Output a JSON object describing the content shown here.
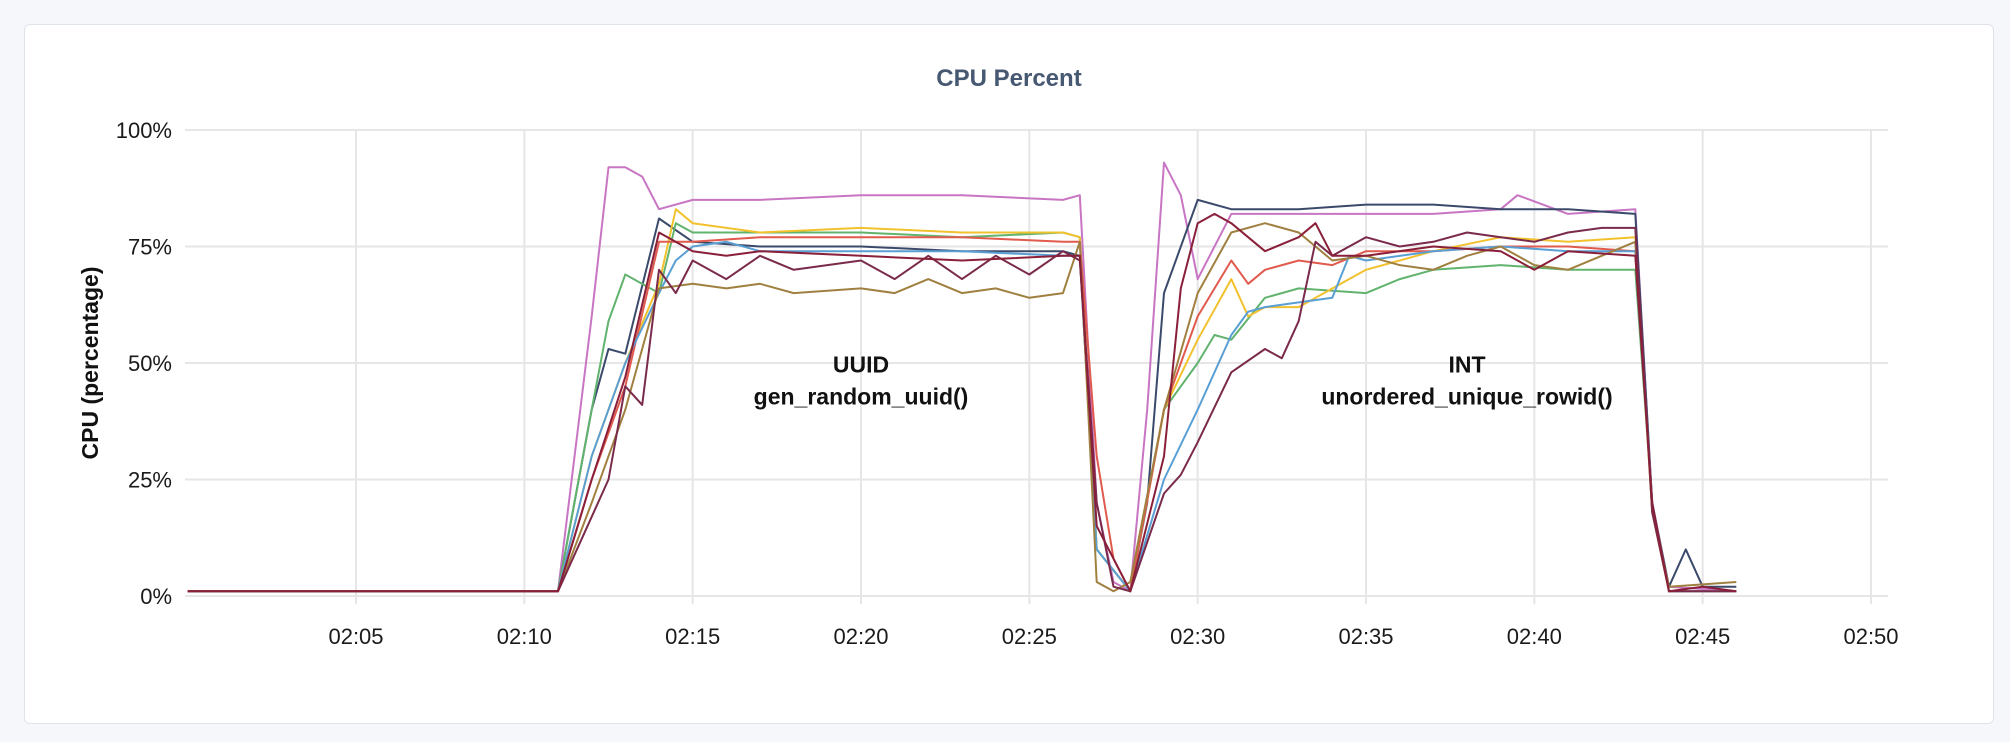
{
  "panel": {
    "title": "CPU Percent"
  },
  "chart_data": {
    "type": "line",
    "title": "CPU Percent",
    "xlabel": "",
    "ylabel": "CPU (percentage)",
    "x_ticks": [
      "02:05",
      "02:10",
      "02:15",
      "02:20",
      "02:25",
      "02:30",
      "02:35",
      "02:40",
      "02:45",
      "02:50"
    ],
    "y_ticks": [
      "0%",
      "25%",
      "50%",
      "75%",
      "100%"
    ],
    "xlim": [
      "02:00",
      "02:50"
    ],
    "ylim": [
      0,
      100
    ],
    "grid": true,
    "legend": "none",
    "annotations": [
      {
        "lines": [
          "UUID",
          "gen_random_uuid()"
        ],
        "x": "02:20",
        "y": 48
      },
      {
        "lines": [
          "INT",
          "unordered_unique_rowid()"
        ],
        "x": "02:38",
        "y": 48
      }
    ],
    "series": [
      {
        "color": "#c875c4",
        "points": [
          [
            "02:00",
            1
          ],
          [
            "02:11",
            1
          ],
          [
            "02:12",
            60
          ],
          [
            "02:12.5",
            92
          ],
          [
            "02:13",
            92
          ],
          [
            "02:13.5",
            90
          ],
          [
            "02:14",
            83
          ],
          [
            "02:15",
            85
          ],
          [
            "02:17",
            85
          ],
          [
            "02:20",
            86
          ],
          [
            "02:23",
            86
          ],
          [
            "02:26",
            85
          ],
          [
            "02:26.5",
            86
          ],
          [
            "02:27",
            20
          ],
          [
            "02:27.5",
            3
          ],
          [
            "02:28",
            1
          ],
          [
            "02:28.5",
            40
          ],
          [
            "02:29",
            93
          ],
          [
            "02:29.5",
            86
          ],
          [
            "02:30",
            68
          ],
          [
            "02:31",
            82
          ],
          [
            "02:33",
            82
          ],
          [
            "02:35",
            82
          ],
          [
            "02:37",
            82
          ],
          [
            "02:39",
            83
          ],
          [
            "02:39.5",
            86
          ],
          [
            "02:41",
            82
          ],
          [
            "02:43",
            83
          ],
          [
            "02:43.5",
            20
          ],
          [
            "02:44",
            2
          ],
          [
            "02:46",
            1
          ]
        ]
      },
      {
        "color": "#3b4a6b",
        "points": [
          [
            "02:00",
            1
          ],
          [
            "02:11",
            1
          ],
          [
            "02:12",
            40
          ],
          [
            "02:12.5",
            53
          ],
          [
            "02:13",
            52
          ],
          [
            "02:14",
            81
          ],
          [
            "02:15",
            76
          ],
          [
            "02:17",
            75
          ],
          [
            "02:20",
            75
          ],
          [
            "02:23",
            74
          ],
          [
            "02:26",
            74
          ],
          [
            "02:26.5",
            73
          ],
          [
            "02:27",
            10
          ],
          [
            "02:28",
            1
          ],
          [
            "02:28.5",
            20
          ],
          [
            "02:29",
            65
          ],
          [
            "02:30",
            85
          ],
          [
            "02:31",
            83
          ],
          [
            "02:33",
            83
          ],
          [
            "02:35",
            84
          ],
          [
            "02:37",
            84
          ],
          [
            "02:39",
            83
          ],
          [
            "02:41",
            83
          ],
          [
            "02:43",
            82
          ],
          [
            "02:43.5",
            20
          ],
          [
            "02:44",
            2
          ],
          [
            "02:44.5",
            10
          ],
          [
            "02:45",
            2
          ],
          [
            "02:46",
            2
          ]
        ]
      },
      {
        "color": "#61b36e",
        "points": [
          [
            "02:00",
            1
          ],
          [
            "02:11",
            1
          ],
          [
            "02:12",
            40
          ],
          [
            "02:12.5",
            59
          ],
          [
            "02:13",
            69
          ],
          [
            "02:14",
            65
          ],
          [
            "02:14.5",
            80
          ],
          [
            "02:15",
            78
          ],
          [
            "02:17",
            78
          ],
          [
            "02:20",
            78
          ],
          [
            "02:23",
            77
          ],
          [
            "02:26",
            78
          ],
          [
            "02:26.5",
            77
          ],
          [
            "02:27",
            10
          ],
          [
            "02:28",
            1
          ],
          [
            "02:29",
            40
          ],
          [
            "02:30",
            50
          ],
          [
            "02:30.5",
            56
          ],
          [
            "02:31",
            55
          ],
          [
            "02:32",
            64
          ],
          [
            "02:33",
            66
          ],
          [
            "02:35",
            65
          ],
          [
            "02:36",
            68
          ],
          [
            "02:37",
            70
          ],
          [
            "02:39",
            71
          ],
          [
            "02:41",
            70
          ],
          [
            "02:43",
            70
          ],
          [
            "02:43.5",
            20
          ],
          [
            "02:44",
            1
          ],
          [
            "02:46",
            1
          ]
        ]
      },
      {
        "color": "#f2c12e",
        "points": [
          [
            "02:00",
            1
          ],
          [
            "02:11",
            1
          ],
          [
            "02:12",
            30
          ],
          [
            "02:13",
            50
          ],
          [
            "02:14",
            67
          ],
          [
            "02:14.5",
            83
          ],
          [
            "02:15",
            80
          ],
          [
            "02:17",
            78
          ],
          [
            "02:20",
            79
          ],
          [
            "02:23",
            78
          ],
          [
            "02:26",
            78
          ],
          [
            "02:26.5",
            77
          ],
          [
            "02:27",
            10
          ],
          [
            "02:28",
            1
          ],
          [
            "02:29",
            40
          ],
          [
            "02:30",
            55
          ],
          [
            "02:31",
            68
          ],
          [
            "02:31.5",
            60
          ],
          [
            "02:32",
            62
          ],
          [
            "02:33",
            62
          ],
          [
            "02:35",
            70
          ],
          [
            "02:37",
            74
          ],
          [
            "02:39",
            77
          ],
          [
            "02:41",
            76
          ],
          [
            "02:43",
            77
          ],
          [
            "02:43.5",
            18
          ],
          [
            "02:44",
            1
          ],
          [
            "02:46",
            1
          ]
        ]
      },
      {
        "color": "#e05a4e",
        "points": [
          [
            "02:00",
            1
          ],
          [
            "02:11",
            1
          ],
          [
            "02:12",
            25
          ],
          [
            "02:13",
            45
          ],
          [
            "02:14",
            76
          ],
          [
            "02:15",
            76
          ],
          [
            "02:17",
            77
          ],
          [
            "02:20",
            77
          ],
          [
            "02:23",
            77
          ],
          [
            "02:26",
            76
          ],
          [
            "02:26.5",
            76
          ],
          [
            "02:27",
            30
          ],
          [
            "02:27.5",
            8
          ],
          [
            "02:28",
            1
          ],
          [
            "02:29",
            40
          ],
          [
            "02:30",
            60
          ],
          [
            "02:31",
            72
          ],
          [
            "02:31.5",
            67
          ],
          [
            "02:32",
            70
          ],
          [
            "02:33",
            72
          ],
          [
            "02:34",
            71
          ],
          [
            "02:35",
            74
          ],
          [
            "02:37",
            74
          ],
          [
            "02:39",
            75
          ],
          [
            "02:41",
            75
          ],
          [
            "02:43",
            74
          ],
          [
            "02:43.5",
            20
          ],
          [
            "02:44",
            1
          ],
          [
            "02:46",
            1
          ]
        ]
      },
      {
        "color": "#5a9fd4",
        "points": [
          [
            "02:00",
            1
          ],
          [
            "02:11",
            1
          ],
          [
            "02:12",
            30
          ],
          [
            "02:13",
            50
          ],
          [
            "02:14",
            65
          ],
          [
            "02:14.5",
            72
          ],
          [
            "02:15",
            75
          ],
          [
            "02:16",
            76
          ],
          [
            "02:17",
            74
          ],
          [
            "02:20",
            74
          ],
          [
            "02:23",
            74
          ],
          [
            "02:26",
            73
          ],
          [
            "02:26.5",
            73
          ],
          [
            "02:27",
            10
          ],
          [
            "02:28",
            1
          ],
          [
            "02:29",
            25
          ],
          [
            "02:30",
            40
          ],
          [
            "02:31",
            56
          ],
          [
            "02:31.5",
            61
          ],
          [
            "02:32",
            62
          ],
          [
            "02:33",
            63
          ],
          [
            "02:34",
            64
          ],
          [
            "02:34.5",
            73
          ],
          [
            "02:35",
            72
          ],
          [
            "02:37",
            74
          ],
          [
            "02:39",
            75
          ],
          [
            "02:41",
            74
          ],
          [
            "02:43",
            74
          ],
          [
            "02:43.5",
            20
          ],
          [
            "02:44",
            1
          ],
          [
            "02:46",
            1
          ]
        ]
      },
      {
        "color": "#a08040",
        "points": [
          [
            "02:00",
            1
          ],
          [
            "02:11",
            1
          ],
          [
            "02:12",
            20
          ],
          [
            "02:13",
            40
          ],
          [
            "02:14",
            66
          ],
          [
            "02:15",
            67
          ],
          [
            "02:16",
            66
          ],
          [
            "02:17",
            67
          ],
          [
            "02:18",
            65
          ],
          [
            "02:20",
            66
          ],
          [
            "02:21",
            65
          ],
          [
            "02:22",
            68
          ],
          [
            "02:23",
            65
          ],
          [
            "02:24",
            66
          ],
          [
            "02:25",
            64
          ],
          [
            "02:26",
            65
          ],
          [
            "02:26.5",
            76
          ],
          [
            "02:27",
            3
          ],
          [
            "02:27.5",
            1
          ],
          [
            "02:28",
            3
          ],
          [
            "02:29",
            40
          ],
          [
            "02:30",
            65
          ],
          [
            "02:31",
            78
          ],
          [
            "02:32",
            80
          ],
          [
            "02:33",
            78
          ],
          [
            "02:34",
            72
          ],
          [
            "02:35",
            73
          ],
          [
            "02:36",
            71
          ],
          [
            "02:37",
            70
          ],
          [
            "02:38",
            73
          ],
          [
            "02:39",
            75
          ],
          [
            "02:40",
            71
          ],
          [
            "02:41",
            70
          ],
          [
            "02:42",
            73
          ],
          [
            "02:43",
            76
          ],
          [
            "02:43.5",
            18
          ],
          [
            "02:44",
            2
          ],
          [
            "02:46",
            3
          ]
        ]
      },
      {
        "color": "#7a2a4a",
        "points": [
          [
            "02:00",
            1
          ],
          [
            "02:11",
            1
          ],
          [
            "02:12",
            17
          ],
          [
            "02:12.5",
            25
          ],
          [
            "02:13",
            45
          ],
          [
            "02:13.5",
            41
          ],
          [
            "02:14",
            70
          ],
          [
            "02:14.5",
            65
          ],
          [
            "02:15",
            72
          ],
          [
            "02:16",
            68
          ],
          [
            "02:17",
            73
          ],
          [
            "02:18",
            70
          ],
          [
            "02:20",
            72
          ],
          [
            "02:21",
            68
          ],
          [
            "02:22",
            73
          ],
          [
            "02:23",
            68
          ],
          [
            "02:24",
            73
          ],
          [
            "02:25",
            69
          ],
          [
            "02:26",
            74
          ],
          [
            "02:26.5",
            72
          ],
          [
            "02:27",
            20
          ],
          [
            "02:27.5",
            2
          ],
          [
            "02:28",
            1
          ],
          [
            "02:29",
            22
          ],
          [
            "02:29.5",
            26
          ],
          [
            "02:30",
            33
          ],
          [
            "02:31",
            48
          ],
          [
            "02:32",
            53
          ],
          [
            "02:32.5",
            51
          ],
          [
            "02:33",
            59
          ],
          [
            "02:33.5",
            76
          ],
          [
            "02:34",
            73
          ],
          [
            "02:35",
            77
          ],
          [
            "02:36",
            75
          ],
          [
            "02:37",
            76
          ],
          [
            "02:38",
            78
          ],
          [
            "02:39",
            77
          ],
          [
            "02:40",
            76
          ],
          [
            "02:41",
            78
          ],
          [
            "02:42",
            79
          ],
          [
            "02:43",
            79
          ],
          [
            "02:43.5",
            18
          ],
          [
            "02:44",
            1
          ],
          [
            "02:45",
            1
          ],
          [
            "02:46",
            1
          ]
        ]
      },
      {
        "color": "#8a1f3a",
        "points": [
          [
            "02:00",
            1
          ],
          [
            "02:11",
            1
          ],
          [
            "02:12",
            25
          ],
          [
            "02:13",
            47
          ],
          [
            "02:14",
            78
          ],
          [
            "02:15",
            74
          ],
          [
            "02:16",
            73
          ],
          [
            "02:17",
            74
          ],
          [
            "02:20",
            73
          ],
          [
            "02:23",
            72
          ],
          [
            "02:26",
            73
          ],
          [
            "02:26.5",
            73
          ],
          [
            "02:27",
            15
          ],
          [
            "02:28",
            1
          ],
          [
            "02:29",
            30
          ],
          [
            "02:29.5",
            66
          ],
          [
            "02:30",
            80
          ],
          [
            "02:30.5",
            82
          ],
          [
            "02:31",
            80
          ],
          [
            "02:32",
            74
          ],
          [
            "02:33",
            77
          ],
          [
            "02:33.5",
            80
          ],
          [
            "02:34",
            73
          ],
          [
            "02:35",
            73
          ],
          [
            "02:37",
            75
          ],
          [
            "02:39",
            74
          ],
          [
            "02:40",
            70
          ],
          [
            "02:41",
            74
          ],
          [
            "02:43",
            73
          ],
          [
            "02:43.5",
            20
          ],
          [
            "02:44",
            1
          ],
          [
            "02:45",
            2
          ],
          [
            "02:46",
            1
          ]
        ]
      }
    ]
  }
}
